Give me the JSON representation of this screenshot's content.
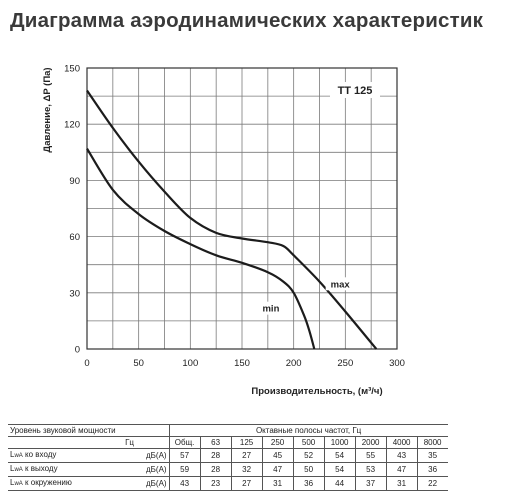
{
  "title": "Диаграмма аэродинамических характеристик",
  "chart_data": {
    "type": "line",
    "model_label": "TT 125",
    "xlabel": "Производительность, (м³/ч)",
    "ylabel": "Давление, ΔP (Па)",
    "xlim": [
      0,
      300
    ],
    "ylim": [
      0,
      150
    ],
    "xticks": [
      "0",
      "50",
      "100",
      "150",
      "200",
      "250",
      "300"
    ],
    "yticks": [
      "0",
      "30",
      "60",
      "90",
      "120",
      "150"
    ],
    "grid": true,
    "series": [
      {
        "name": "max",
        "x": [
          0,
          25,
          50,
          75,
          100,
          125,
          150,
          175,
          190,
          200,
          225,
          250,
          280
        ],
        "y": [
          138,
          118,
          100,
          84,
          70,
          62,
          59,
          57,
          55,
          50,
          36,
          20,
          0
        ]
      },
      {
        "name": "min",
        "x": [
          0,
          25,
          50,
          75,
          100,
          125,
          150,
          175,
          190,
          200,
          210,
          215,
          220
        ],
        "y": [
          107,
          85,
          72,
          63,
          56,
          50,
          46,
          41,
          36,
          30,
          18,
          10,
          0
        ]
      }
    ]
  },
  "sound_table": {
    "header_label": "Уровень звуковой мощности",
    "header_bands": "Октавные полосы частот, Гц",
    "unit_header": "Гц",
    "columns": [
      "Общ.",
      "63",
      "125",
      "250",
      "500",
      "1000",
      "2000",
      "4000",
      "8000"
    ],
    "rows": [
      {
        "label_main": "L",
        "label_sub": "wA",
        "label_rest": " ко входу",
        "unit": "дБ(А)",
        "values": [
          "57",
          "28",
          "27",
          "45",
          "52",
          "54",
          "55",
          "43",
          "35"
        ]
      },
      {
        "label_main": "L",
        "label_sub": "wA",
        "label_rest": " к выходу",
        "unit": "дБ(А)",
        "values": [
          "59",
          "28",
          "32",
          "47",
          "50",
          "54",
          "53",
          "47",
          "36"
        ]
      },
      {
        "label_main": "L",
        "label_sub": "wA",
        "label_rest": " к окружению",
        "unit": "дБ(А)",
        "values": [
          "43",
          "23",
          "27",
          "31",
          "36",
          "44",
          "37",
          "31",
          "22"
        ]
      }
    ]
  }
}
